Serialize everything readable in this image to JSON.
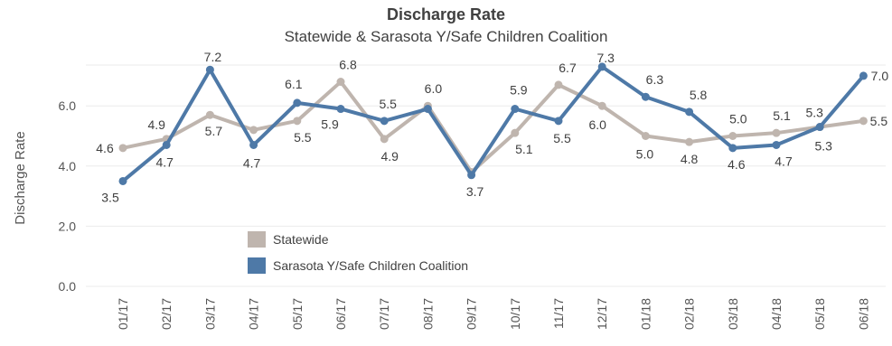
{
  "chart_data": {
    "type": "line",
    "title": "Discharge Rate",
    "subtitle": "Statewide & Sarasota Y/Safe Children Coalition",
    "ylabel": "Discharge Rate",
    "xlabel": "",
    "ylim": [
      0,
      7.6
    ],
    "yticks": [
      "0.0",
      "2.0",
      "4.0",
      "6.0"
    ],
    "ytick_values": [
      0,
      2,
      4,
      6
    ],
    "grid": true,
    "legend_position": "bottom-left",
    "categories": [
      "01/17",
      "02/17",
      "03/17",
      "04/17",
      "05/17",
      "06/17",
      "07/17",
      "08/17",
      "09/17",
      "10/17",
      "11/17",
      "12/17",
      "01/18",
      "02/18",
      "03/18",
      "04/18",
      "05/18",
      "06/18"
    ],
    "series": [
      {
        "name": "Statewide",
        "color": "#bfb5ae",
        "values": [
          4.6,
          4.9,
          5.7,
          5.2,
          5.5,
          6.8,
          4.9,
          6.0,
          3.8,
          5.1,
          6.7,
          6.0,
          5.0,
          4.8,
          5.0,
          5.1,
          5.3,
          5.5
        ],
        "labels": [
          "4.6",
          "4.9",
          "5.7",
          "",
          "5.5",
          "6.8",
          "4.9",
          "6.0",
          "",
          "5.1",
          "6.7",
          "6.0",
          "5.0",
          "4.8",
          "5.0",
          "5.1",
          "5.3",
          "5.5"
        ]
      },
      {
        "name": "Sarasota Y/Safe Children Coalition",
        "color": "#4e79a7",
        "values": [
          3.5,
          4.7,
          7.2,
          4.7,
          6.1,
          5.9,
          5.5,
          5.9,
          3.7,
          5.9,
          5.5,
          7.3,
          6.3,
          5.8,
          4.6,
          4.7,
          5.3,
          7.0
        ],
        "labels": [
          "3.5",
          "4.7",
          "7.2",
          "4.7",
          "6.1",
          "5.9",
          "5.5",
          "",
          "3.7",
          "5.9",
          "5.5",
          "7.3",
          "6.3",
          "5.8",
          "4.6",
          "4.7",
          "5.3",
          "7.0"
        ]
      }
    ]
  }
}
